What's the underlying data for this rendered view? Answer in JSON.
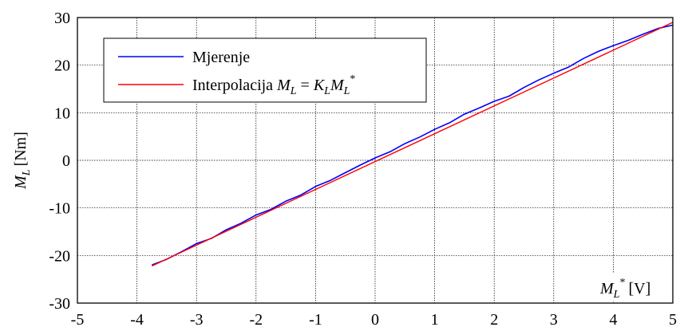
{
  "chart_data": {
    "type": "line",
    "title": "",
    "xlabel": {
      "var": "M",
      "sub": "L",
      "sup": "*",
      "unit": "[V]"
    },
    "ylabel": {
      "var": "M",
      "sub": "L",
      "unit": "[Nm]"
    },
    "xlim": [
      -5,
      5
    ],
    "ylim": [
      -30,
      30
    ],
    "xticks": [
      -5,
      -4,
      -3,
      -2,
      -1,
      0,
      1,
      2,
      3,
      4,
      5
    ],
    "yticks": [
      -30,
      -20,
      -10,
      0,
      10,
      20,
      30
    ],
    "grid": true,
    "legend_position": "top-left",
    "series": [
      {
        "name": "Mjerenje",
        "color": "#0000ff",
        "x": [
          -3.75,
          -3.5,
          -3.25,
          -3.0,
          -2.75,
          -2.5,
          -2.25,
          -2.0,
          -1.75,
          -1.5,
          -1.25,
          -1.0,
          -0.75,
          -0.5,
          -0.25,
          0.0,
          0.25,
          0.5,
          0.75,
          1.0,
          1.25,
          1.5,
          1.75,
          2.0,
          2.25,
          2.5,
          2.75,
          3.0,
          3.25,
          3.5,
          3.75,
          4.0,
          4.25,
          4.5,
          4.75,
          5.0
        ],
        "y": [
          -22.0,
          -20.8,
          -19.2,
          -17.5,
          -16.4,
          -14.6,
          -13.2,
          -11.5,
          -10.3,
          -8.6,
          -7.3,
          -5.5,
          -4.2,
          -2.6,
          -1.0,
          0.5,
          1.8,
          3.5,
          4.9,
          6.5,
          7.9,
          9.7,
          11.0,
          12.4,
          13.5,
          15.3,
          16.9,
          18.3,
          19.6,
          21.4,
          22.9,
          24.1,
          25.2,
          26.5,
          27.7,
          28.4
        ]
      },
      {
        "name": "Interpolacija",
        "legend_formula": {
          "lhs": "M",
          "lhs_sub": "L",
          "eq": " = ",
          "k": "K",
          "k_sub": "L",
          "rhs": "M",
          "rhs_sub": "L",
          "rhs_sup": "*"
        },
        "color": "#ff0000",
        "x": [
          -3.75,
          5.0
        ],
        "y": [
          -22.2,
          29.0
        ]
      }
    ]
  }
}
